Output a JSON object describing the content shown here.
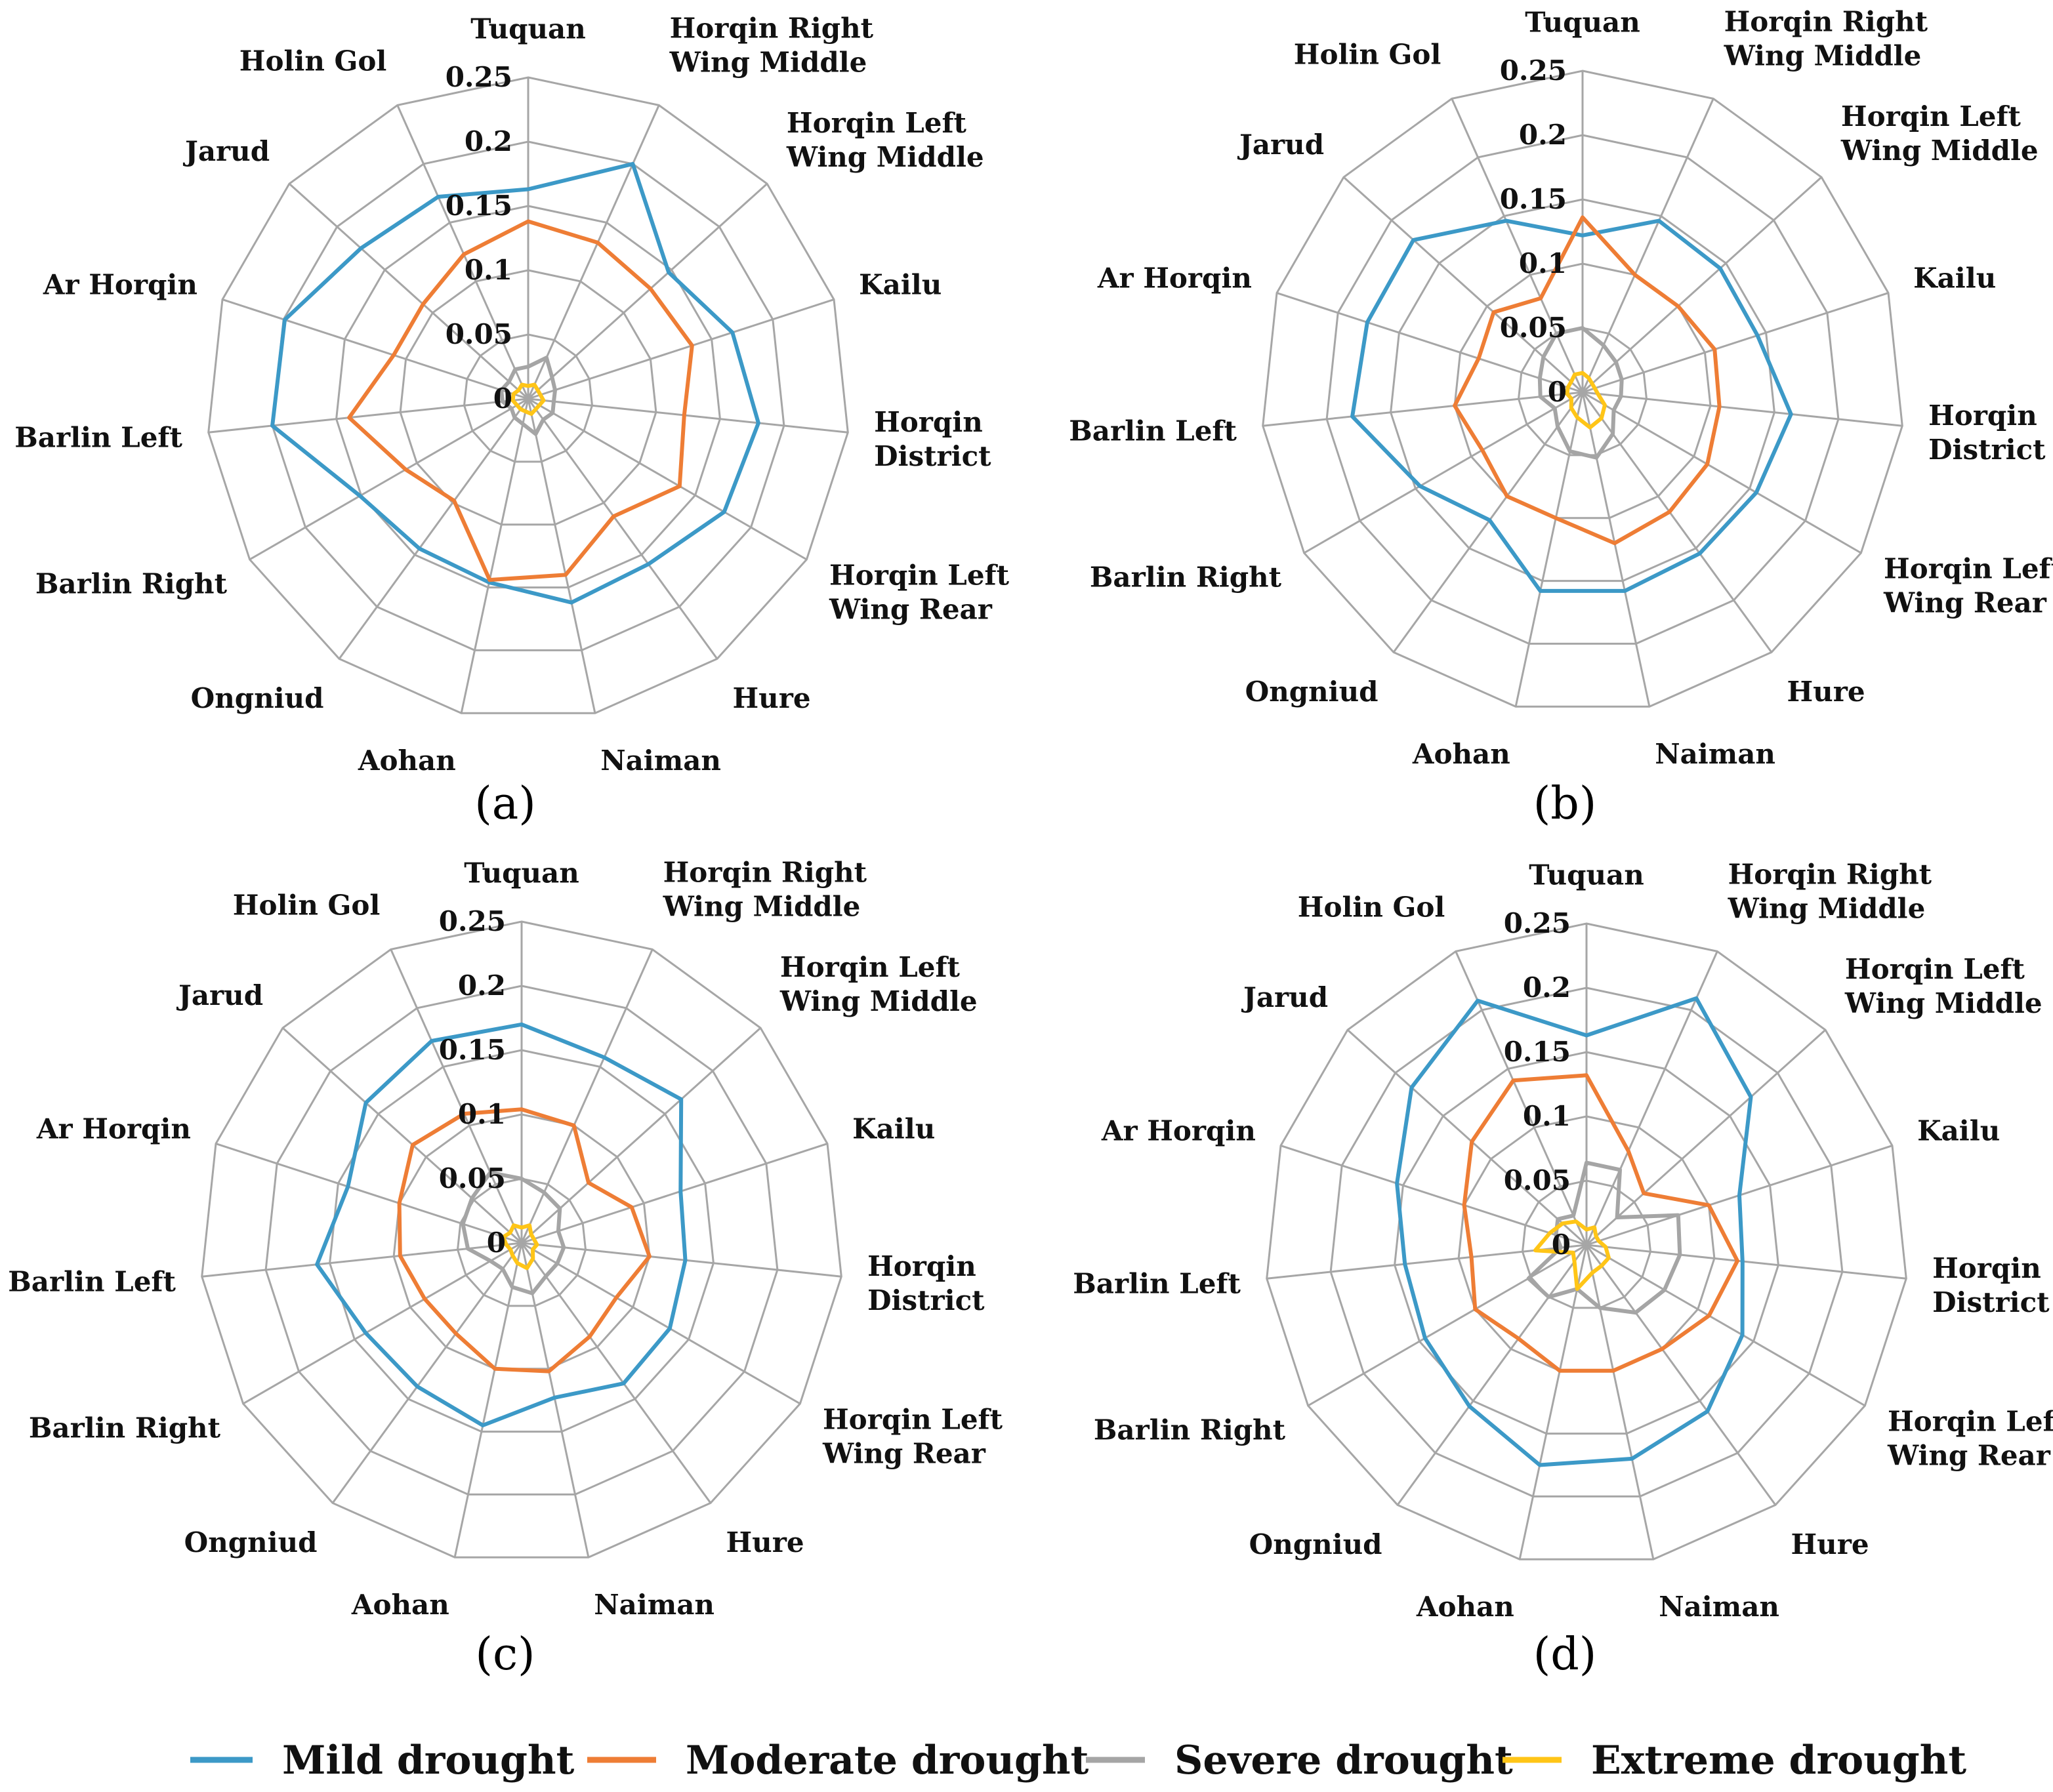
{
  "chart_data": [
    {
      "type": "radar",
      "panel": "(a)",
      "categories": [
        "Tuquan",
        "Horqin Right Wing Middle",
        "Horqin Left Wing Middle",
        "Kailu",
        "Horqin District",
        "Horqin Left Wing Rear",
        "Hure",
        "Naiman",
        "Aohan",
        "Ongniud",
        "Barlin Right",
        "Barlin Left",
        "Ar Horqin",
        "Jarud",
        "Holin Gol"
      ],
      "label_lines": [
        [
          "Tuquan"
        ],
        [
          "Horqin Right",
          "Wing Middle"
        ],
        [
          "Horqin Left",
          "Wing Middle"
        ],
        [
          "Kailu"
        ],
        [
          "Horqin",
          "District"
        ],
        [
          "Horqin Left",
          "Wing Rear"
        ],
        [
          "Hure"
        ],
        [
          "Naiman"
        ],
        [
          "Aohan"
        ],
        [
          "Ongniud"
        ],
        [
          "Barlin Right"
        ],
        [
          "Barlin Left"
        ],
        [
          "Ar Horqin"
        ],
        [
          "Jarud"
        ],
        [
          "Holin Gol"
        ]
      ],
      "rticks": [
        "0",
        "0.05",
        "0.1",
        "0.15",
        "0.2",
        "0.25"
      ],
      "rlim": [
        0,
        0.25
      ],
      "series": [
        {
          "name": "Mild drought",
          "color": "#3c99c7",
          "values": [
            0.163,
            0.2,
            0.147,
            0.167,
            0.18,
            0.176,
            0.159,
            0.162,
            0.146,
            0.144,
            0.151,
            0.2,
            0.199,
            0.175,
            0.172
          ]
        },
        {
          "name": "Moderate drought",
          "color": "#ee7d35",
          "values": [
            0.138,
            0.133,
            0.128,
            0.134,
            0.122,
            0.136,
            0.113,
            0.14,
            0.144,
            0.098,
            0.11,
            0.14,
            0.11,
            0.11,
            0.123
          ]
        },
        {
          "name": "Severe drought",
          "color": "#a5a5a5",
          "values": [
            0.025,
            0.035,
            0.025,
            0.022,
            0.02,
            0.022,
            0.02,
            0.028,
            0.02,
            0.018,
            0.015,
            0.02,
            0.022,
            0.02,
            0.025
          ]
        },
        {
          "name": "Extreme drought",
          "color": "#ffc517",
          "values": [
            0.01,
            0.012,
            0.01,
            0.01,
            0.012,
            0.01,
            0.01,
            0.012,
            0.01,
            0.01,
            0.01,
            0.012,
            0.012,
            0.01,
            0.012
          ]
        }
      ]
    },
    {
      "type": "radar",
      "panel": "(b)",
      "categories": [
        "Tuquan",
        "Horqin Right Wing Middle",
        "Horqin Left Wing Middle",
        "Kailu",
        "Horqin District",
        "Horqin Left Wing Rear",
        "Hure",
        "Naiman",
        "Aohan",
        "Ongniud",
        "Barlin Right",
        "Barlin Left",
        "Ar Horqin",
        "Jarud",
        "Holin Gol"
      ],
      "label_lines": [
        [
          "Tuquan"
        ],
        [
          "Horqin Right",
          "Wing Middle"
        ],
        [
          "Horqin Left",
          "Wing Middle"
        ],
        [
          "Kailu"
        ],
        [
          "Horqin",
          "District"
        ],
        [
          "Horqin Left",
          "Wing Rear"
        ],
        [
          "Hure"
        ],
        [
          "Naiman"
        ],
        [
          "Aohan"
        ],
        [
          "Ongniud"
        ],
        [
          "Barlin Right"
        ],
        [
          "Barlin Left"
        ],
        [
          "Ar Horqin"
        ],
        [
          "Jarud"
        ],
        [
          "Holin Gol"
        ]
      ],
      "rticks": [
        "0",
        "0.05",
        "0.1",
        "0.15",
        "0.2",
        "0.25"
      ],
      "rlim": [
        0,
        0.25
      ],
      "series": [
        {
          "name": "Mild drought",
          "color": "#3c99c7",
          "values": [
            0.122,
            0.146,
            0.144,
            0.143,
            0.163,
            0.156,
            0.155,
            0.158,
            0.158,
            0.123,
            0.146,
            0.18,
            0.176,
            0.177,
            0.146
          ]
        },
        {
          "name": "Moderate drought",
          "color": "#ee7d35",
          "values": [
            0.136,
            0.1,
            0.1,
            0.108,
            0.107,
            0.112,
            0.115,
            0.12,
            0.1,
            0.1,
            0.09,
            0.1,
            0.085,
            0.093,
            0.08
          ]
        },
        {
          "name": "Severe drought",
          "color": "#a5a5a5",
          "values": [
            0.05,
            0.04,
            0.035,
            0.032,
            0.03,
            0.028,
            0.04,
            0.052,
            0.047,
            0.033,
            0.025,
            0.033,
            0.035,
            0.041,
            0.05
          ]
        },
        {
          "name": "Extreme drought",
          "color": "#ffc517",
          "values": [
            0.015,
            0.012,
            0.01,
            0.01,
            0.012,
            0.02,
            0.025,
            0.028,
            0.02,
            0.015,
            0.01,
            0.012,
            0.012,
            0.012,
            0.015
          ]
        }
      ]
    },
    {
      "type": "radar",
      "panel": "(c)",
      "categories": [
        "Tuquan",
        "Horqin Right Wing Middle",
        "Horqin Left Wing Middle",
        "Kailu",
        "Horqin District",
        "Horqin Left Wing Rear",
        "Hure",
        "Naiman",
        "Aohan",
        "Ongniud",
        "Barlin Right",
        "Barlin Left",
        "Ar Horqin",
        "Jarud",
        "Holin Gol"
      ],
      "label_lines": [
        [
          "Tuquan"
        ],
        [
          "Horqin Right",
          "Wing Middle"
        ],
        [
          "Horqin Left",
          "Wing Middle"
        ],
        [
          "Kailu"
        ],
        [
          "Horqin",
          "District"
        ],
        [
          "Horqin Left",
          "Wing Rear"
        ],
        [
          "Hure"
        ],
        [
          "Naiman"
        ],
        [
          "Aohan"
        ],
        [
          "Ongniud"
        ],
        [
          "Barlin Right"
        ],
        [
          "Barlin Left"
        ],
        [
          "Ar Horqin"
        ],
        [
          "Jarud"
        ],
        [
          "Holin Gol"
        ]
      ],
      "rticks": [
        "0",
        "0.05",
        "0.1",
        "0.15",
        "0.2",
        "0.25"
      ],
      "rlim": [
        0,
        0.25
      ],
      "series": [
        {
          "name": "Mild drought",
          "color": "#3c99c7",
          "values": [
            0.17,
            0.158,
            0.167,
            0.13,
            0.128,
            0.133,
            0.135,
            0.123,
            0.145,
            0.138,
            0.14,
            0.16,
            0.142,
            0.163,
            0.172
          ]
        },
        {
          "name": "Moderate drought",
          "color": "#ee7d35",
          "values": [
            0.104,
            0.1,
            0.07,
            0.09,
            0.1,
            0.085,
            0.09,
            0.102,
            0.1,
            0.087,
            0.087,
            0.095,
            0.1,
            0.114,
            0.11
          ]
        },
        {
          "name": "Severe drought",
          "color": "#a5a5a5",
          "values": [
            0.05,
            0.043,
            0.04,
            0.03,
            0.033,
            0.032,
            0.032,
            0.04,
            0.035,
            0.025,
            0.028,
            0.042,
            0.048,
            0.052,
            0.06
          ]
        },
        {
          "name": "Extreme drought",
          "color": "#ffc517",
          "values": [
            0.012,
            0.015,
            0.01,
            0.01,
            0.012,
            0.01,
            0.015,
            0.02,
            0.016,
            0.012,
            0.01,
            0.012,
            0.015,
            0.012,
            0.015
          ]
        }
      ]
    },
    {
      "type": "radar",
      "panel": "(d)",
      "categories": [
        "Tuquan",
        "Horqin Right Wing Middle",
        "Horqin Left Wing Middle",
        "Kailu",
        "Horqin District",
        "Horqin Left Wing Rear",
        "Hure",
        "Naiman",
        "Aohan",
        "Ongniud",
        "Barlin Right",
        "Barlin Left",
        "Ar Horqin",
        "Jarud",
        "Holin Gol"
      ],
      "label_lines": [
        [
          "Tuquan"
        ],
        [
          "Horqin Right",
          "Wing Middle"
        ],
        [
          "Horqin Left",
          "Wing Middle"
        ],
        [
          "Kailu"
        ],
        [
          "Horqin",
          "District"
        ],
        [
          "Horqin Left",
          "Wing Rear"
        ],
        [
          "Hure"
        ],
        [
          "Naiman"
        ],
        [
          "Aohan"
        ],
        [
          "Ongniud"
        ],
        [
          "Barlin Right"
        ],
        [
          "Barlin Left"
        ],
        [
          "Ar Horqin"
        ],
        [
          "Jarud"
        ],
        [
          "Holin Gol"
        ]
      ],
      "rticks": [
        "0",
        "0.05",
        "0.1",
        "0.15",
        "0.2",
        "0.25"
      ],
      "rlim": [
        0,
        0.25
      ],
      "series": [
        {
          "name": "Mild drought",
          "color": "#3c99c7",
          "values": [
            0.163,
            0.21,
            0.172,
            0.125,
            0.122,
            0.14,
            0.16,
            0.17,
            0.175,
            0.155,
            0.145,
            0.142,
            0.155,
            0.183,
            0.208
          ]
        },
        {
          "name": "Moderate drought",
          "color": "#ee7d35",
          "values": [
            0.132,
            0.08,
            0.06,
            0.1,
            0.118,
            0.11,
            0.1,
            0.1,
            0.1,
            0.09,
            0.1,
            0.09,
            0.1,
            0.12,
            0.14
          ]
        },
        {
          "name": "Severe drought",
          "color": "#a5a5a5",
          "values": [
            0.064,
            0.064,
            0.032,
            0.075,
            0.073,
            0.07,
            0.065,
            0.05,
            0.035,
            0.05,
            0.052,
            0.02,
            0.025,
            0.03,
            0.025
          ]
        },
        {
          "name": "Extreme drought",
          "color": "#ffc517",
          "values": [
            0.012,
            0.015,
            0.01,
            0.01,
            0.015,
            0.02,
            0.02,
            0.022,
            0.035,
            0.016,
            0.012,
            0.04,
            0.03,
            0.025,
            0.02
          ]
        }
      ]
    }
  ],
  "legend": [
    {
      "name": "Mild drought",
      "color": "#3c99c7"
    },
    {
      "name": "Moderate drought",
      "color": "#ee7d35"
    },
    {
      "name": "Severe drought",
      "color": "#a5a5a5"
    },
    {
      "name": "Extreme drought",
      "color": "#ffc517"
    }
  ],
  "grid_color": "#a6a6a6"
}
